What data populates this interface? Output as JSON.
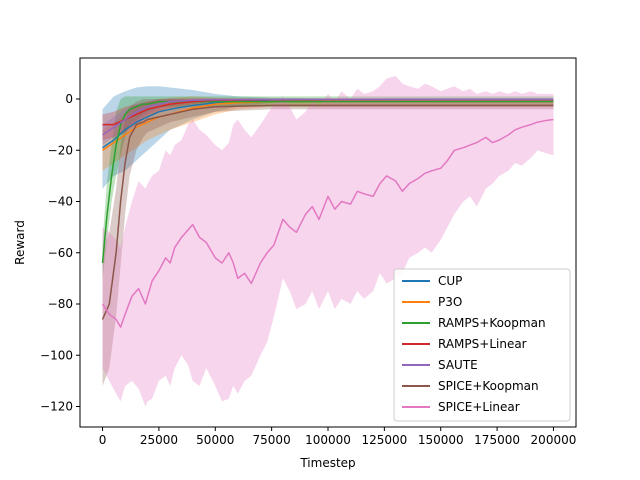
{
  "chart_data": {
    "type": "line",
    "title": "",
    "xlabel": "Timestep",
    "ylabel": "Reward",
    "xlim": [
      -10000,
      210000
    ],
    "ylim": [
      -128,
      16
    ],
    "x_ticks": [
      0,
      25000,
      50000,
      75000,
      100000,
      125000,
      150000,
      175000,
      200000
    ],
    "y_ticks": [
      -120,
      -100,
      -80,
      -60,
      -40,
      -20,
      0
    ],
    "grid": false,
    "legend_position": "lower-right",
    "series": [
      {
        "name": "CUP",
        "color": "#1f77b4",
        "x": [
          0,
          5000,
          10000,
          15000,
          20000,
          25000,
          30000,
          40000,
          50000,
          60000,
          75000,
          100000,
          150000,
          200000
        ],
        "y": [
          -19,
          -16,
          -12,
          -9,
          -7,
          -5,
          -4,
          -2.5,
          -1.5,
          -0.8,
          -0.4,
          -0.3,
          -0.2,
          -0.2
        ],
        "band_lower": [
          -35,
          -30,
          -28,
          -24,
          -20,
          -16,
          -12,
          -8,
          -5,
          -3,
          -1.5,
          -1,
          -1,
          -1
        ],
        "band_upper": [
          -4,
          1,
          3,
          4.5,
          5,
          5,
          4.5,
          3.5,
          2,
          1,
          0.5,
          0.3,
          0.3,
          0.3
        ]
      },
      {
        "name": "P3O",
        "color": "#ff7f0e",
        "x": [
          0,
          5000,
          10000,
          15000,
          20000,
          25000,
          30000,
          40000,
          50000,
          60000,
          75000,
          100000,
          150000,
          200000
        ],
        "y": [
          -20,
          -17,
          -14,
          -11,
          -9,
          -7,
          -6,
          -3.5,
          -2,
          -1.5,
          -1,
          -1,
          -1,
          -1
        ],
        "band_lower": [
          -28,
          -25,
          -22,
          -19,
          -16,
          -14,
          -12,
          -9,
          -6,
          -4,
          -3,
          -3,
          -3,
          -3
        ],
        "band_upper": [
          -12,
          -9,
          -6,
          -3,
          -1,
          0,
          0.5,
          1,
          0.5,
          0.3,
          0.2,
          0.2,
          0.2,
          0.2
        ]
      },
      {
        "name": "RAMPS+Koopman",
        "color": "#2ca02c",
        "x": [
          0,
          2000,
          4000,
          6000,
          8000,
          10000,
          12000,
          15000,
          18000,
          20000,
          25000,
          30000,
          35000,
          40000,
          50000,
          75000,
          100000,
          150000,
          200000
        ],
        "y": [
          -64,
          -45,
          -30,
          -18,
          -10,
          -6,
          -4,
          -3,
          -2,
          -2,
          -1,
          -1,
          -1,
          -1,
          -1,
          -1,
          -1,
          -1,
          -1
        ],
        "band_lower": [
          -70,
          -55,
          -40,
          -30,
          -22,
          -15,
          -10,
          -8,
          -6,
          -5,
          -3,
          -3,
          -3,
          -3,
          -3,
          -3,
          -3,
          -3,
          -3
        ],
        "band_upper": [
          -55,
          -32,
          -18,
          -5,
          0,
          1,
          1,
          1,
          1,
          1,
          1,
          1,
          1,
          1,
          1,
          1,
          1,
          1,
          1
        ]
      },
      {
        "name": "RAMPS+Linear",
        "color": "#d62728",
        "x": [
          0,
          5000,
          10000,
          15000,
          20000,
          25000,
          30000,
          40000,
          50000,
          75000,
          100000,
          150000,
          200000
        ],
        "y": [
          -10,
          -10,
          -8,
          -6,
          -4,
          -3,
          -2,
          -1,
          -0.5,
          -0.3,
          -0.3,
          -0.3,
          -0.3
        ],
        "band_lower": [
          -16,
          -15,
          -13,
          -10,
          -7,
          -5,
          -3.5,
          -2,
          -1,
          -0.8,
          -0.8,
          -0.8,
          -0.8
        ],
        "band_upper": [
          -6,
          -5,
          -3,
          -2,
          -1,
          -0.5,
          0,
          0.2,
          0.2,
          0.2,
          0.2,
          0.2,
          0.2
        ]
      },
      {
        "name": "SAUTE",
        "color": "#9467bd",
        "x": [
          0,
          5000,
          10000,
          15000,
          20000,
          25000,
          30000,
          40000,
          50000,
          75000,
          100000,
          150000,
          200000
        ],
        "y": [
          -14,
          -11,
          -8,
          -5,
          -3,
          -2,
          -1,
          -0.5,
          -0.3,
          -0.2,
          -0.2,
          -0.2,
          -0.2
        ],
        "band_lower": [
          -18,
          -15,
          -12,
          -9,
          -6,
          -4,
          -2.5,
          -1.5,
          -1,
          -0.5,
          -0.5,
          -0.5,
          -0.5
        ],
        "band_upper": [
          -10,
          -7,
          -4,
          -2,
          -1,
          0,
          0.3,
          0.3,
          0.3,
          0.2,
          0.2,
          0.2,
          0.2
        ]
      },
      {
        "name": "SPICE+Koopman",
        "color": "#8c564b",
        "x": [
          0,
          3000,
          6000,
          8000,
          10000,
          12000,
          15000,
          18000,
          20000,
          25000,
          30000,
          35000,
          40000,
          50000,
          75000,
          100000,
          150000,
          200000
        ],
        "y": [
          -86,
          -80,
          -60,
          -40,
          -25,
          -15,
          -10,
          -9,
          -8,
          -7,
          -6,
          -5,
          -4,
          -3,
          -2.5,
          -2.5,
          -2.5,
          -2.5
        ],
        "band_lower": [
          -112,
          -105,
          -85,
          -65,
          -45,
          -30,
          -20,
          -15,
          -13,
          -11,
          -9,
          -8,
          -7,
          -5,
          -4,
          -4,
          -4,
          -4
        ],
        "band_upper": [
          -60,
          -52,
          -35,
          -18,
          -8,
          -3,
          -1,
          0,
          0,
          0,
          0,
          0,
          -0.5,
          -1,
          -1,
          -1,
          -1,
          -1
        ]
      },
      {
        "name": "SPICE+Linear",
        "color": "#e377c2",
        "x": [
          0,
          3000,
          6000,
          8000,
          10000,
          13000,
          16000,
          19000,
          20000,
          22000,
          25000,
          28000,
          30000,
          32000,
          35000,
          38000,
          40000,
          43000,
          46000,
          50000,
          53000,
          56000,
          58000,
          60000,
          63000,
          66000,
          70000,
          73000,
          76000,
          80000,
          83000,
          86000,
          90000,
          93000,
          96000,
          100000,
          103000,
          106000,
          110000,
          113000,
          116000,
          120000,
          123000,
          126000,
          130000,
          133000,
          136000,
          140000,
          143000,
          146000,
          150000,
          153000,
          156000,
          160000,
          163000,
          166000,
          170000,
          173000,
          176000,
          180000,
          183000,
          186000,
          190000,
          193000,
          196000,
          200000
        ],
        "y": [
          -80,
          -84,
          -86,
          -89,
          -84,
          -77,
          -74,
          -80,
          -77,
          -71,
          -67,
          -62,
          -64,
          -58,
          -54,
          -51,
          -49,
          -54,
          -56,
          -62,
          -64,
          -60,
          -64,
          -70,
          -68,
          -72,
          -64,
          -60,
          -57,
          -47,
          -50,
          -52,
          -45,
          -42,
          -47,
          -38,
          -43,
          -40,
          -41,
          -36,
          -37,
          -38,
          -33,
          -30,
          -32,
          -36,
          -33,
          -31,
          -29,
          -28,
          -27,
          -24,
          -20,
          -19,
          -18,
          -17,
          -15,
          -17,
          -16,
          -14,
          -12,
          -11,
          -10,
          -9,
          -8.5,
          -8
        ],
        "band_lower": [
          -105,
          -110,
          -115,
          -118,
          -112,
          -110,
          -113,
          -120,
          -118,
          -117,
          -110,
          -108,
          -112,
          -105,
          -100,
          -104,
          -110,
          -112,
          -105,
          -112,
          -118,
          -117,
          -112,
          -115,
          -110,
          -108,
          -100,
          -95,
          -85,
          -70,
          -75,
          -82,
          -80,
          -75,
          -82,
          -75,
          -82,
          -78,
          -80,
          -75,
          -78,
          -75,
          -68,
          -72,
          -70,
          -68,
          -62,
          -60,
          -58,
          -60,
          -55,
          -50,
          -45,
          -40,
          -38,
          -42,
          -35,
          -33,
          -30,
          -28,
          -25,
          -26,
          -23,
          -20,
          -21,
          -22
        ],
        "band_upper": [
          -50,
          -52,
          -55,
          -58,
          -50,
          -40,
          -32,
          -35,
          -33,
          -30,
          -28,
          -20,
          -22,
          -18,
          -16,
          -10,
          -8,
          -12,
          -14,
          -18,
          -20,
          -17,
          -10,
          -8,
          -12,
          -15,
          -10,
          -6,
          -2,
          1,
          -3,
          -8,
          -5,
          -1,
          -3,
          2,
          -1,
          3,
          0,
          4,
          2,
          3,
          5,
          8,
          9,
          6,
          5,
          4,
          6,
          5,
          3,
          4,
          5,
          3,
          4,
          2,
          3,
          2,
          3,
          2,
          3,
          2,
          3,
          2,
          2,
          2
        ]
      }
    ]
  }
}
